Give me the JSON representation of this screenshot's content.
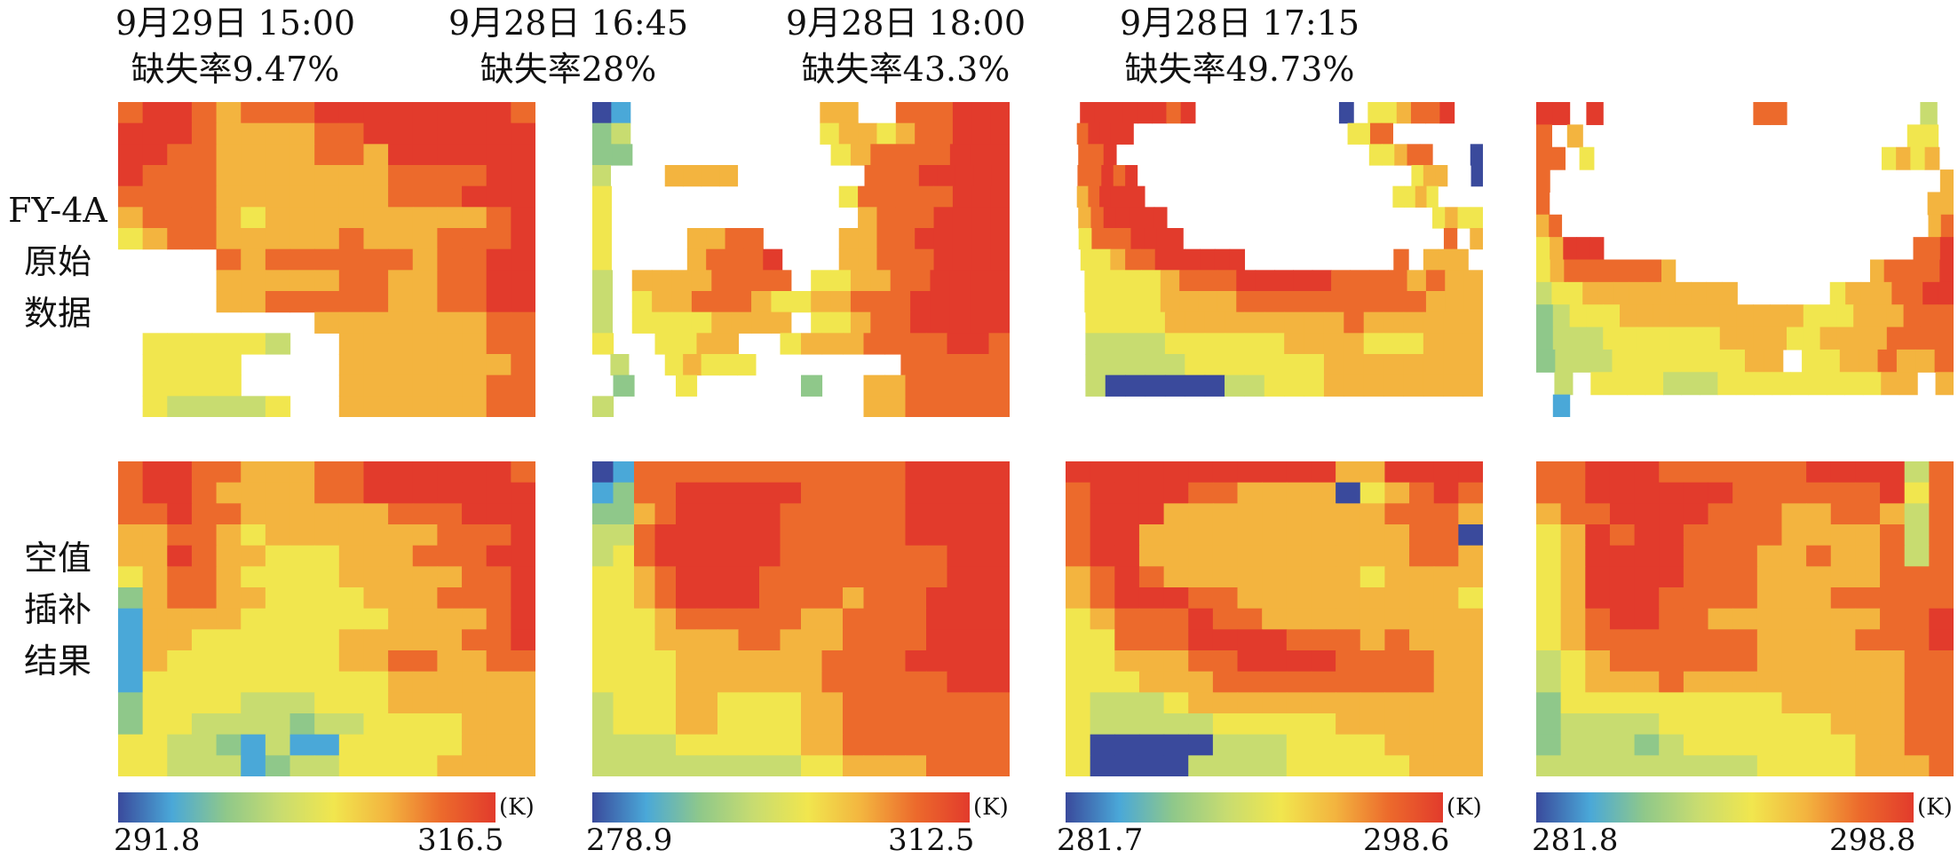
{
  "row_labels": [
    "FY-4A原始数据",
    "空值插补结果"
  ],
  "row_label_lines": [
    [
      "FY-4A",
      "原始",
      "数据"
    ],
    [
      "空值",
      "插补",
      "结果"
    ]
  ],
  "colors": {
    "scale": [
      "#3a4a9c",
      "#4aa8d8",
      "#8fc88a",
      "#c8dc70",
      "#f1e64e",
      "#f3b43f",
      "#ec6a2c",
      "#e23b2c"
    ],
    "missing": "#ffffff"
  },
  "columns": [
    {
      "time": "9月29日 15:00",
      "missing_rate": "缺失率9.47%",
      "colorbar": {
        "min": "291.8",
        "max": "316.5",
        "unit": "(K)"
      }
    },
    {
      "time": "9月28日 16:45",
      "missing_rate": "缺失率28%",
      "colorbar": {
        "min": "278.9",
        "max": "312.5",
        "unit": "(K)"
      }
    },
    {
      "time": "9月28日 18:00",
      "missing_rate": "缺失率43.3%",
      "colorbar": {
        "min": "281.7",
        "max": "298.6",
        "unit": "(K)"
      }
    },
    {
      "time": "9月28日 17:15",
      "missing_rate": "缺失率49.73%",
      "colorbar": {
        "min": "281.8",
        "max": "298.8",
        "unit": "(K)"
      }
    }
  ],
  "chart_data": [
    {
      "type": "heatmap",
      "panel": "9月29日 15:00 FY-4A原始数据",
      "vmin": 291.8,
      "vmax": 316.5,
      "unit": "K",
      "grid": [
        "67765666788998776",
        "77765555668888777",
        "77665555665998777",
        "76665555555666677",
        "66665555555666777",
        "56665455555555567",
        "45665555565556667",
        "____6566666656677",
        "____5555566556677",
        "____5566666556677",
        "________555555566",
        "_444443__55555566",
        "_4444____55555556",
        "_4444____55555566",
        "_433334__55555566"
      ]
    },
    {
      "type": "heatmap",
      "panel": "9月29日 15:00 空值插补结果",
      "vmin": 291.8,
      "vmax": 316.5,
      "unit": "K",
      "grid": [
        "67766555668888776",
        "67765555668888777",
        "66766555555666777",
        "55665455555556667",
        "55765544455566677",
        "45665444455555667",
        "25665544445556667",
        "15555444444555567",
        "15544444455555667",
        "15444444455665566",
        "14444444444555555",
        "24444333444555555",
        "24433332334444555",
        "44332131144444555",
        "44333123344445555"
      ]
    },
    {
      "type": "heatmap",
      "panel": "9月28日 16:45 FY-4A原始数据",
      "vmin": 278.9,
      "vmax": 312.5,
      "unit": "K",
      "grid": [
        "01__________55__666777",
        "23__________4554566777",
        "22__________456666777",
        "3___5555_______66677777",
        "4____________466666777",
        "4_____________56667777",
        "4____5566____556677777",
        "4____56667___556667777",
        "3_55556666_4455667777",
        "3_4556665445566677777",
        "3_44445555_4456677777",
        "4__4455__45556666776",
        "_3__45444________666666",
        "_2__4_____2__5566666",
        "3____________5566666"
      ]
    },
    {
      "type": "heatmap",
      "panel": "9月28日 16:45 空值插补结果",
      "vmin": 278.9,
      "vmax": 312.5,
      "unit": "K",
      "grid": [
        "01666666666666677777",
        "12667777776666677777",
        "22567777766666677777",
        "33677777766666677777",
        "34677777766666666777",
        "44567777666666666777",
        "44567777666656667777",
        "44456666665566667777",
        "44455556655566667777",
        "44445555555666677777",
        "44445555555666666777",
        "34445544445566666666",
        "34445544445566666666",
        "33334444445566666666",
        "33333333334455556666"
      ]
    },
    {
      "type": "heatmap",
      "panel": "9月28日 18:00 FY-4A原始数据",
      "vmin": 281.7,
      "vmax": 298.6,
      "unit": "K",
      "grid": [
        "_77777767__________0_445667__",
        "_67777___________________4466________",
        "_667____________________44566___0",
        "_66767_______________________455__0",
        "_567777______________________4454____",
        "_5677777_____________________4544",
        "_46667777____________________6_5",
        "_44566777777__________6_555_",
        "_444456667777766665655",
        "_444455556666666666555",
        "_44445555555556555555",
        "_33334444445555444555",
        "_33333444444455555555",
        "_30000003344455555555",
        "_______________________"
      ]
    },
    {
      "type": "heatmap",
      "panel": "9月28日 18:00 空值插补结果",
      "vmin": 281.7,
      "vmax": 298.6,
      "unit": "K",
      "grid": [
        "77777777777557777",
        "67777665555045676",
        "67775555555556665",
        "67755555555555660",
        "67755555555555665",
        "56765555555545555",
        "56777665555555554",
        "45666766555555555",
        "44666777766656555",
        "44555667777666655",
        "44455566666666655",
        "43334555555555555",
        "43333344444555555",
        "40000033344445555",
        "40000333344444555"
      ]
    },
    {
      "type": "heatmap",
      "panel": "9月28日 17:15 FY-4A原始数据",
      "vmin": 281.8,
      "vmax": 298.8,
      "unit": "K",
      "grid": [
        "77_7_________66________3_",
        "6_5_____________________44_",
        "66_4____________________4545_",
        "6_____________________________5",
        "6_____________________________55",
        "56_____________________________56",
        "45777_______________________667",
        "4566666665______________566667",
        "3445555555555______45556677",
        "2344455555555555444555666",
        "2333444444455554455556666",
        "2333444444455_44556556",
        "_3_444433344444444455_5",
        "_1_______________________"
      ]
    },
    {
      "type": "heatmap",
      "panel": "9月28日 17:15 空值插补结果",
      "vmin": 281.8,
      "vmax": 298.8,
      "unit": "K",
      "grid": [
        "66777666666777736",
        "66777777666666746",
        "56677776665566536",
        "45767766665555636",
        "45787766655655636",
        "45777766655555666",
        "45777666655566666",
        "45677665555555667",
        "45666666655556667",
        "34566666655555566",
        "34555655555555566",
        "24444444445555566",
        "23333444444455566",
        "23332344444445566",
        "33333333344445556"
      ]
    }
  ]
}
